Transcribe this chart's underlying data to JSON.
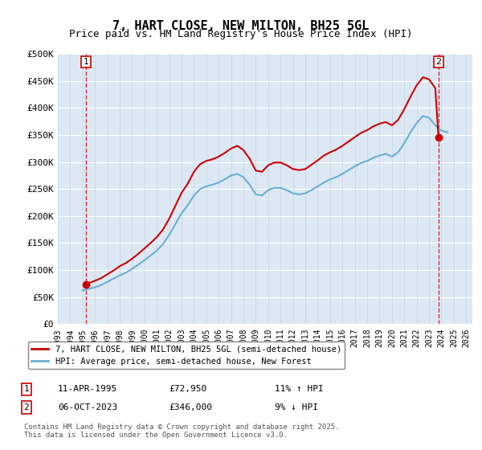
{
  "title": "7, HART CLOSE, NEW MILTON, BH25 5GL",
  "subtitle": "Price paid vs. HM Land Registry's House Price Index (HPI)",
  "ylabel_ticks": [
    "£0",
    "£50K",
    "£100K",
    "£150K",
    "£200K",
    "£250K",
    "£300K",
    "£350K",
    "£400K",
    "£450K",
    "£500K"
  ],
  "ytick_vals": [
    0,
    50000,
    100000,
    150000,
    200000,
    250000,
    300000,
    350000,
    400000,
    450000,
    500000
  ],
  "ylim": [
    0,
    500000
  ],
  "xlim_start": 1993.0,
  "xlim_end": 2026.5,
  "hpi_color": "#6baed6",
  "price_color": "#cc0000",
  "bg_color": "#dce9f5",
  "plot_bg": "#dce9f5",
  "hatch_color": "#b0b8c8",
  "grid_color": "#ffffff",
  "transaction1_x": 1995.27,
  "transaction1_y": 72950,
  "transaction2_x": 2023.76,
  "transaction2_y": 346000,
  "legend_line1": "7, HART CLOSE, NEW MILTON, BH25 5GL (semi-detached house)",
  "legend_line2": "HPI: Average price, semi-detached house, New Forest",
  "table_row1": [
    "1",
    "11-APR-1995",
    "£72,950",
    "11% ↑ HPI"
  ],
  "table_row2": [
    "2",
    "06-OCT-2023",
    "£346,000",
    "9% ↓ HPI"
  ],
  "copyright": "Contains HM Land Registry data © Crown copyright and database right 2025.\nThis data is licensed under the Open Government Licence v3.0.",
  "hpi_data_x": [
    1995.0,
    1995.5,
    1996.0,
    1996.5,
    1997.0,
    1997.5,
    1998.0,
    1998.5,
    1999.0,
    1999.5,
    2000.0,
    2000.5,
    2001.0,
    2001.5,
    2002.0,
    2002.5,
    2003.0,
    2003.5,
    2004.0,
    2004.5,
    2005.0,
    2005.5,
    2006.0,
    2006.5,
    2007.0,
    2007.5,
    2008.0,
    2008.5,
    2009.0,
    2009.5,
    2010.0,
    2010.5,
    2011.0,
    2011.5,
    2012.0,
    2012.5,
    2013.0,
    2013.5,
    2014.0,
    2014.5,
    2015.0,
    2015.5,
    2016.0,
    2016.5,
    2017.0,
    2017.5,
    2018.0,
    2018.5,
    2019.0,
    2019.5,
    2020.0,
    2020.5,
    2021.0,
    2021.5,
    2022.0,
    2022.5,
    2023.0,
    2023.5,
    2024.0,
    2024.5
  ],
  "hpi_data_y": [
    62000,
    65000,
    68000,
    72000,
    78000,
    84000,
    90000,
    95000,
    102000,
    110000,
    118000,
    127000,
    136000,
    148000,
    165000,
    185000,
    205000,
    220000,
    238000,
    250000,
    255000,
    258000,
    262000,
    268000,
    275000,
    278000,
    272000,
    258000,
    240000,
    238000,
    248000,
    252000,
    252000,
    248000,
    242000,
    240000,
    242000,
    248000,
    255000,
    262000,
    268000,
    272000,
    278000,
    285000,
    292000,
    298000,
    302000,
    308000,
    312000,
    315000,
    310000,
    318000,
    335000,
    355000,
    372000,
    385000,
    382000,
    368000,
    358000,
    355000
  ],
  "price_data_x": [
    1995.27,
    1995.5,
    1996.0,
    1996.5,
    1997.0,
    1997.5,
    1998.0,
    1998.5,
    1999.0,
    1999.5,
    2000.0,
    2000.5,
    2001.0,
    2001.5,
    2002.0,
    2002.5,
    2003.0,
    2003.5,
    2004.0,
    2004.5,
    2005.0,
    2005.5,
    2006.0,
    2006.5,
    2007.0,
    2007.5,
    2008.0,
    2008.5,
    2009.0,
    2009.5,
    2010.0,
    2010.5,
    2011.0,
    2011.5,
    2012.0,
    2012.5,
    2013.0,
    2013.5,
    2014.0,
    2014.5,
    2015.0,
    2015.5,
    2016.0,
    2016.5,
    2017.0,
    2017.5,
    2018.0,
    2018.5,
    2019.0,
    2019.5,
    2020.0,
    2020.5,
    2021.0,
    2021.5,
    2022.0,
    2022.5,
    2023.0,
    2023.5,
    2023.76
  ],
  "price_data_y": [
    72950,
    76000,
    80000,
    85000,
    92000,
    99000,
    107000,
    113000,
    121000,
    130000,
    140000,
    150000,
    161000,
    175000,
    195000,
    219000,
    243000,
    260000,
    282000,
    296000,
    302000,
    305000,
    310000,
    317000,
    325000,
    330000,
    322000,
    306000,
    284000,
    282000,
    294000,
    299000,
    299000,
    294000,
    287000,
    285000,
    287000,
    295000,
    303000,
    312000,
    318000,
    323000,
    330000,
    338000,
    346000,
    354000,
    359000,
    366000,
    371000,
    374000,
    368000,
    378000,
    398000,
    421000,
    442000,
    457000,
    453000,
    437000,
    346000
  ]
}
